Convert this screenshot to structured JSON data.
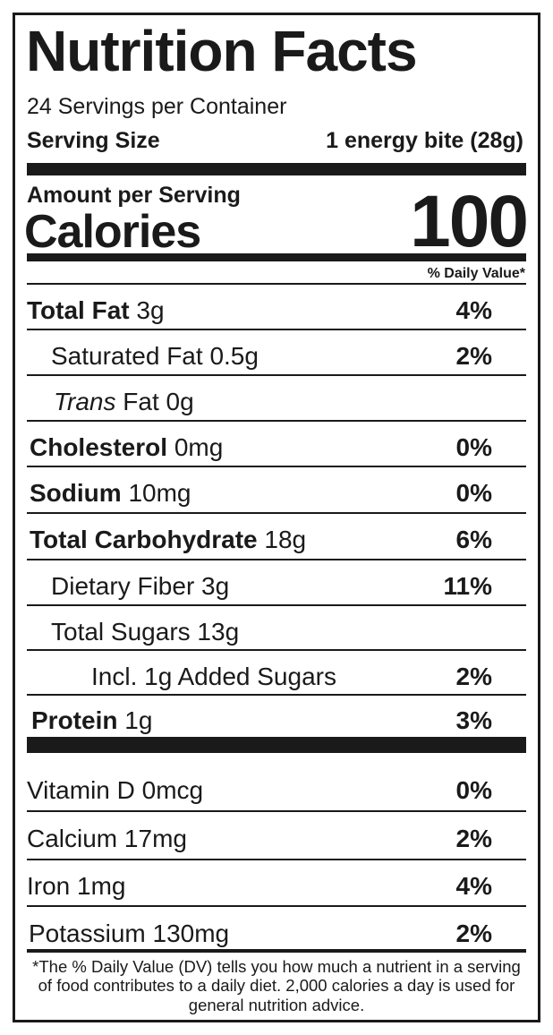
{
  "title": "Nutrition Facts",
  "servings_per_container": "24 Servings per Container",
  "serving_size": {
    "label": "Serving Size",
    "value": "1 energy bite (28g)"
  },
  "amount_per_serving": "Amount per Serving",
  "calories": {
    "label": "Calories",
    "value": "100"
  },
  "dv_header": "% Daily Value*",
  "nutrients": [
    {
      "name": "Total Fat",
      "amount": "3g",
      "dv": "4%"
    },
    {
      "name": "Saturated Fat",
      "amount": "0.5g",
      "dv": "2%"
    },
    {
      "name_italic": "Trans",
      "name": "Fat",
      "amount": "0g",
      "dv": ""
    },
    {
      "name": "Cholesterol",
      "amount": "0mg",
      "dv": "0%"
    },
    {
      "name": "Sodium",
      "amount": "10mg",
      "dv": "0%"
    },
    {
      "name": "Total Carbohydrate",
      "amount": "18g",
      "dv": "6%"
    },
    {
      "name": "Dietary Fiber",
      "amount": "3g",
      "dv": "11%"
    },
    {
      "name": "Total Sugars",
      "amount": "13g",
      "dv": ""
    },
    {
      "name": "Incl. 1g Added Sugars",
      "amount": "",
      "dv": "2%"
    },
    {
      "name": "Protein",
      "amount": "1g",
      "dv": "3%"
    }
  ],
  "vitamins": [
    {
      "name": "Vitamin D",
      "amount": "0mcg",
      "dv": "0%"
    },
    {
      "name": "Calcium",
      "amount": "17mg",
      "dv": "2%"
    },
    {
      "name": "Iron",
      "amount": "1mg",
      "dv": "4%"
    },
    {
      "name": "Potassium",
      "amount": "130mg",
      "dv": "2%"
    }
  ],
  "footnote": "*The % Daily Value (DV) tells you how much a nutrient in a serving of food contributes to a daily diet. 2,000 calories a day is used for general nutrition advice."
}
